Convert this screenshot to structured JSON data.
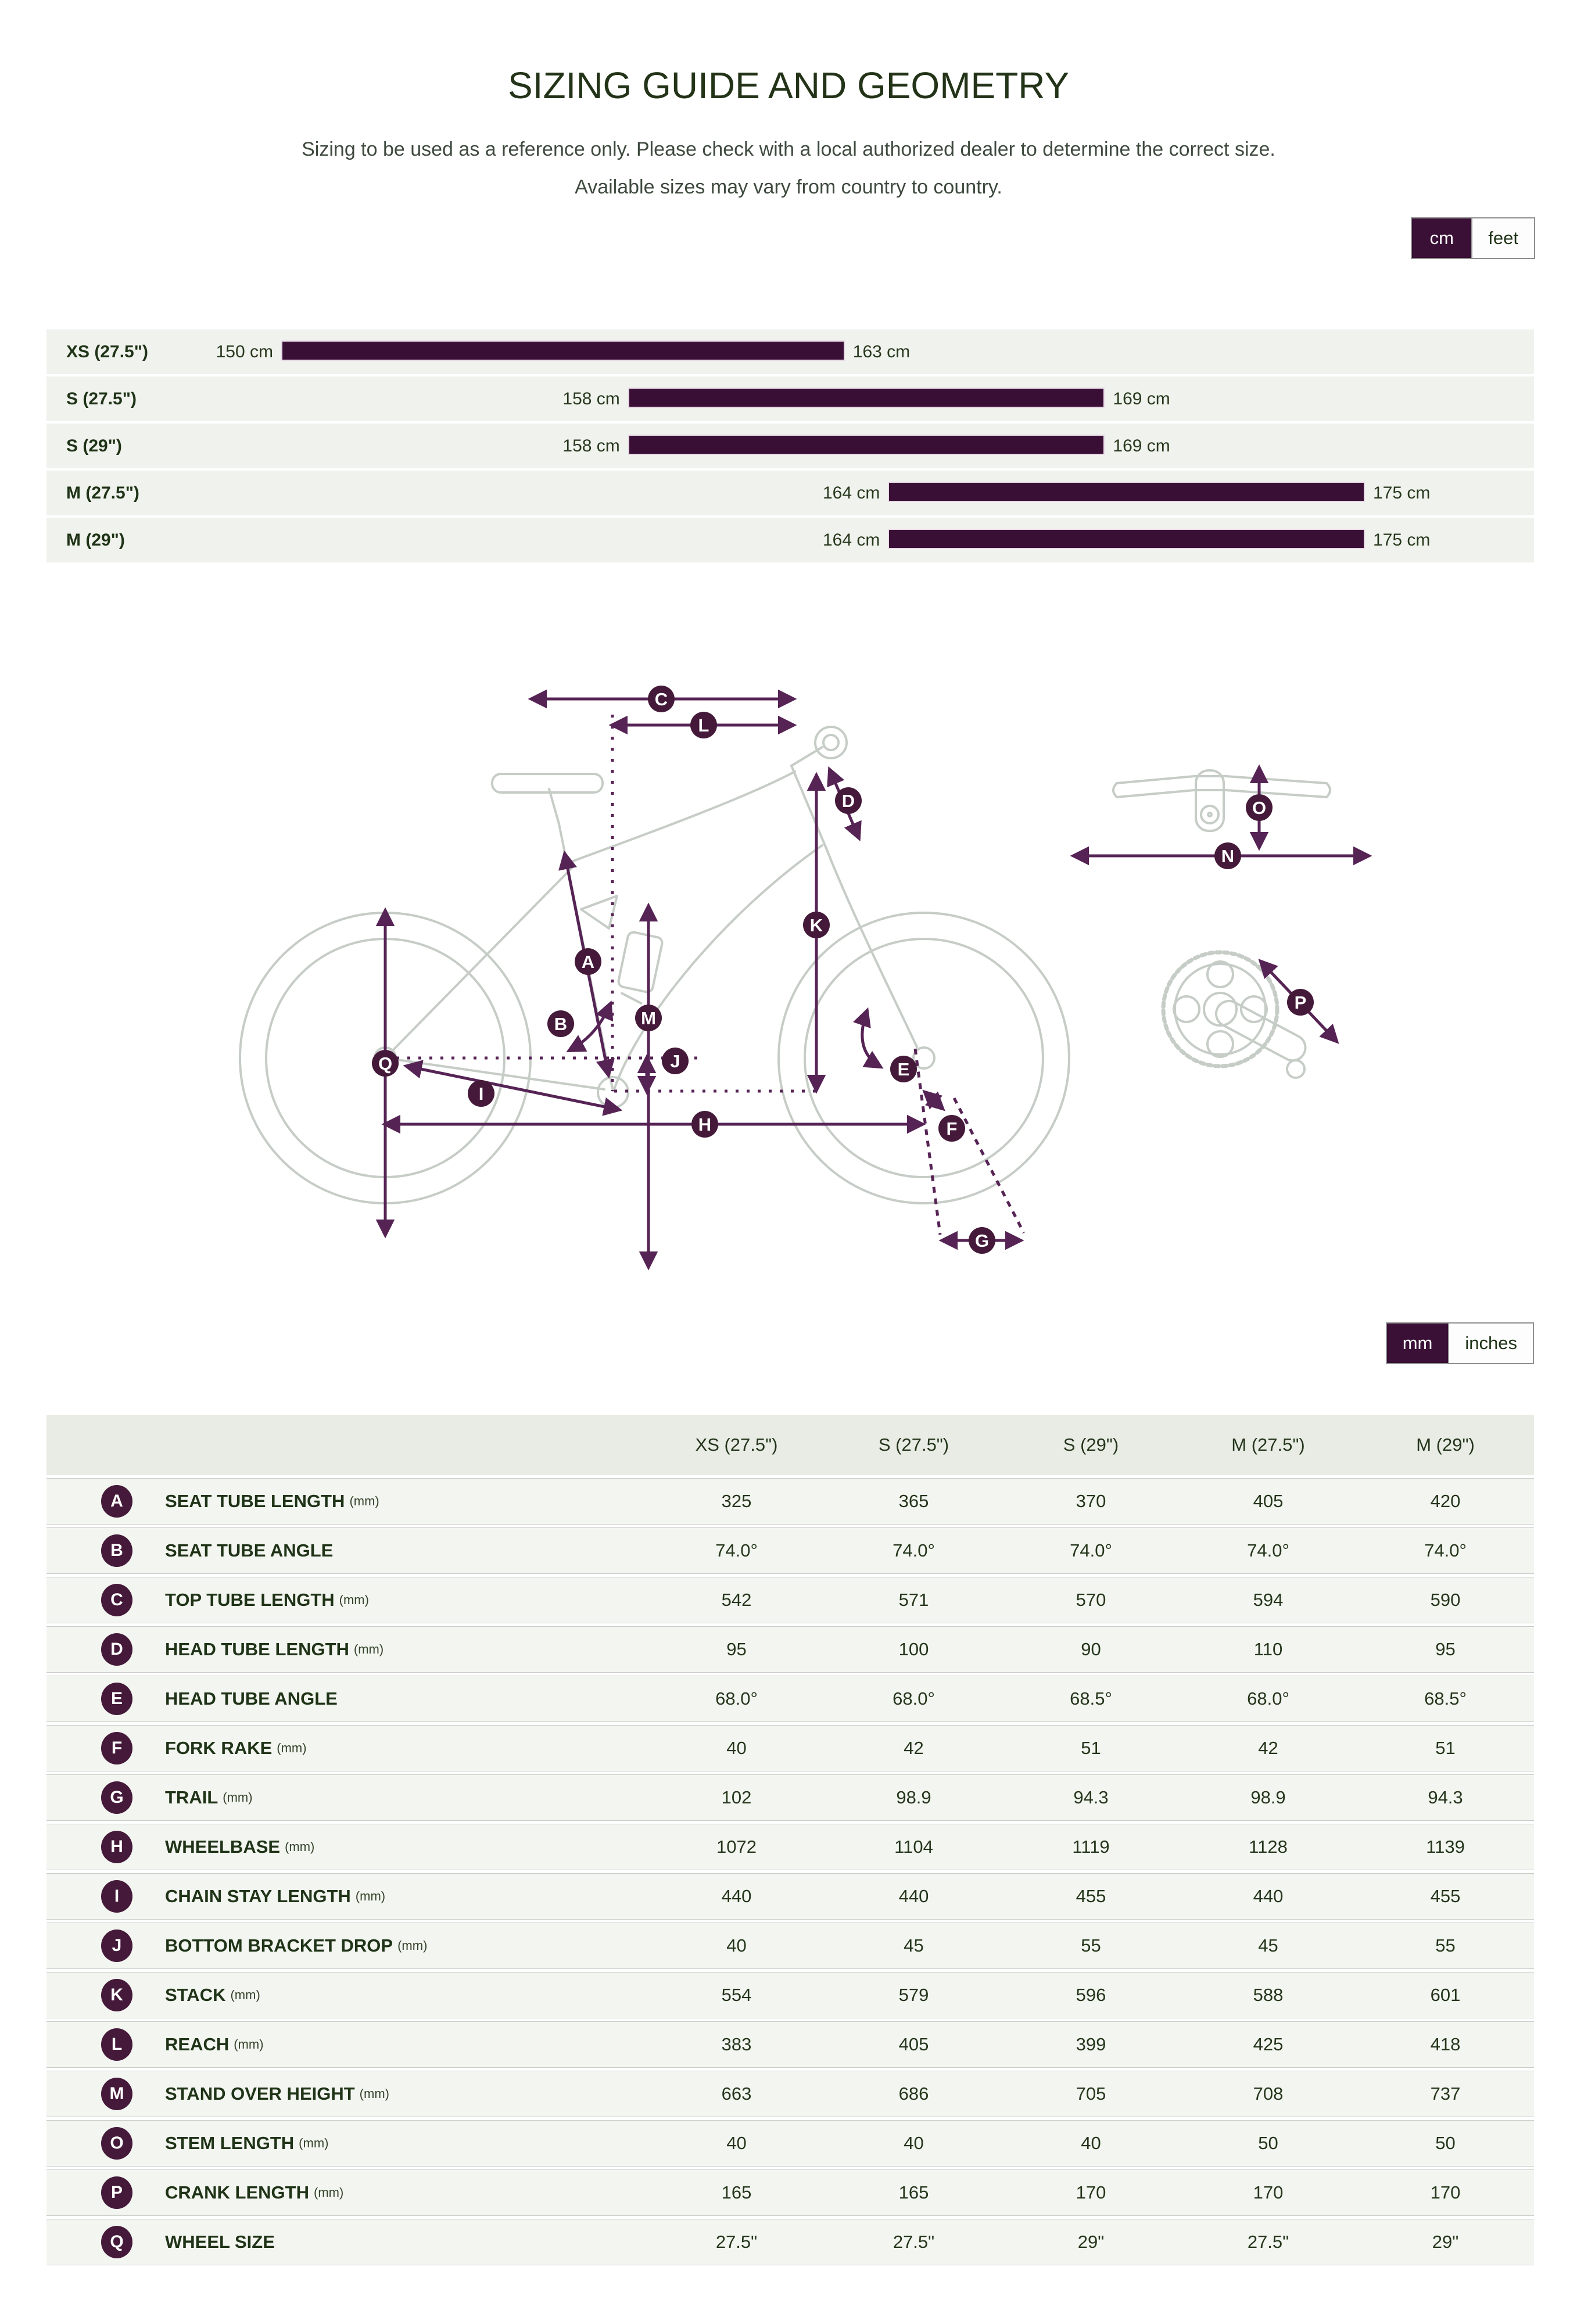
{
  "header": {
    "title": "SIZING GUIDE AND GEOMETRY",
    "subtitle1": "Sizing to be used as a reference only. Please check with a local authorized dealer to determine the correct size.",
    "subtitle2": "Available sizes may vary from country to country."
  },
  "height_toggle": {
    "options": [
      "cm",
      "feet"
    ],
    "selected": "cm"
  },
  "size_chart": {
    "unit": "cm",
    "scale": {
      "min_cm": 150,
      "max_cm": 175
    },
    "rows": [
      {
        "label": "XS (27.5\")",
        "min": 150,
        "max": 163,
        "min_label": "150 cm",
        "max_label": "163 cm"
      },
      {
        "label": "S (27.5\")",
        "min": 158,
        "max": 169,
        "min_label": "158 cm",
        "max_label": "169 cm"
      },
      {
        "label": "S (29\")",
        "min": 158,
        "max": 169,
        "min_label": "158 cm",
        "max_label": "169 cm"
      },
      {
        "label": "M (27.5\")",
        "min": 164,
        "max": 175,
        "min_label": "164 cm",
        "max_label": "175 cm"
      },
      {
        "label": "M (29\")",
        "min": 164,
        "max": 175,
        "min_label": "164 cm",
        "max_label": "175 cm"
      }
    ]
  },
  "diagram": {
    "labels": [
      "A",
      "B",
      "C",
      "D",
      "E",
      "F",
      "G",
      "H",
      "I",
      "J",
      "K",
      "L",
      "M",
      "N",
      "O",
      "P",
      "Q"
    ]
  },
  "unit_toggle": {
    "options": [
      "mm",
      "inches"
    ],
    "selected": "mm"
  },
  "table": {
    "columns": [
      "XS (27.5\")",
      "S (27.5\")",
      "S (29\")",
      "M (27.5\")",
      "M (29\")"
    ],
    "rows": [
      {
        "letter": "A",
        "label": "SEAT TUBE LENGTH",
        "unit": "(mm)",
        "values": [
          "325",
          "365",
          "370",
          "405",
          "420"
        ]
      },
      {
        "letter": "B",
        "label": "SEAT TUBE ANGLE",
        "unit": "",
        "values": [
          "74.0°",
          "74.0°",
          "74.0°",
          "74.0°",
          "74.0°"
        ]
      },
      {
        "letter": "C",
        "label": "TOP TUBE LENGTH",
        "unit": "(mm)",
        "values": [
          "542",
          "571",
          "570",
          "594",
          "590"
        ]
      },
      {
        "letter": "D",
        "label": "HEAD TUBE LENGTH",
        "unit": "(mm)",
        "values": [
          "95",
          "100",
          "90",
          "110",
          "95"
        ]
      },
      {
        "letter": "E",
        "label": "HEAD TUBE ANGLE",
        "unit": "",
        "values": [
          "68.0°",
          "68.0°",
          "68.5°",
          "68.0°",
          "68.5°"
        ]
      },
      {
        "letter": "F",
        "label": "FORK RAKE",
        "unit": "(mm)",
        "values": [
          "40",
          "42",
          "51",
          "42",
          "51"
        ]
      },
      {
        "letter": "G",
        "label": "TRAIL",
        "unit": "(mm)",
        "values": [
          "102",
          "98.9",
          "94.3",
          "98.9",
          "94.3"
        ]
      },
      {
        "letter": "H",
        "label": "WHEELBASE",
        "unit": "(mm)",
        "values": [
          "1072",
          "1104",
          "1119",
          "1128",
          "1139"
        ]
      },
      {
        "letter": "I",
        "label": "CHAIN STAY LENGTH",
        "unit": "(mm)",
        "values": [
          "440",
          "440",
          "455",
          "440",
          "455"
        ]
      },
      {
        "letter": "J",
        "label": "BOTTOM BRACKET DROP",
        "unit": "(mm)",
        "values": [
          "40",
          "45",
          "55",
          "45",
          "55"
        ]
      },
      {
        "letter": "K",
        "label": "STACK",
        "unit": "(mm)",
        "values": [
          "554",
          "579",
          "596",
          "588",
          "601"
        ]
      },
      {
        "letter": "L",
        "label": "REACH",
        "unit": "(mm)",
        "values": [
          "383",
          "405",
          "399",
          "425",
          "418"
        ]
      },
      {
        "letter": "M",
        "label": "STAND OVER HEIGHT",
        "unit": "(mm)",
        "values": [
          "663",
          "686",
          "705",
          "708",
          "737"
        ]
      },
      {
        "letter": "O",
        "label": "STEM LENGTH",
        "unit": "(mm)",
        "values": [
          "40",
          "40",
          "40",
          "50",
          "50"
        ]
      },
      {
        "letter": "P",
        "label": "CRANK LENGTH",
        "unit": "(mm)",
        "values": [
          "165",
          "165",
          "170",
          "170",
          "170"
        ]
      },
      {
        "letter": "Q",
        "label": "WHEEL SIZE",
        "unit": "",
        "values": [
          "27.5\"",
          "27.5\"",
          "29\"",
          "27.5\"",
          "29\""
        ]
      }
    ]
  },
  "colors": {
    "accent_purple": "#3a1036",
    "badge_purple": "#441939",
    "arrow_purple": "#562355",
    "text_green": "#1f3317"
  }
}
